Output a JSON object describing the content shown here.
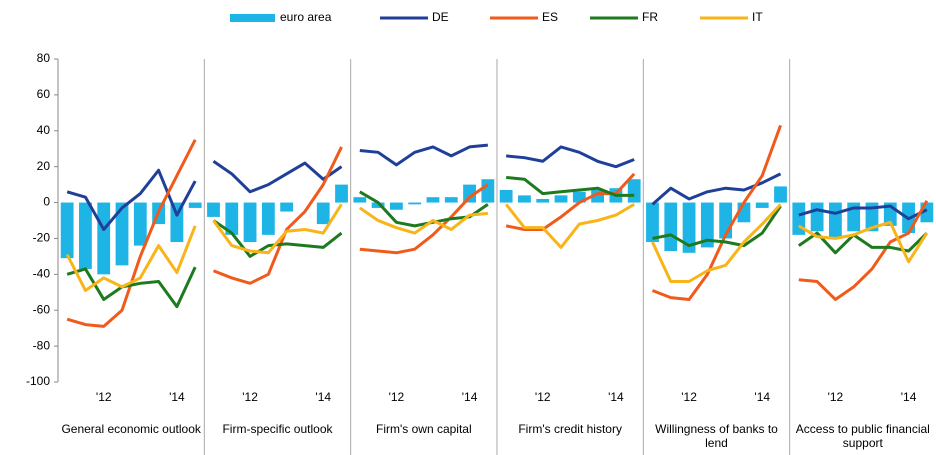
{
  "chart_data": {
    "type": "panel-line",
    "panels": [
      "General economic outlook",
      "Firm-specific outlook",
      "Firm's own capital",
      "Firm's credit history",
      "Willingness of banks to lend",
      "Access to public financial support"
    ],
    "categories": [
      null,
      null,
      "'12",
      null,
      null,
      null,
      "'14",
      null
    ],
    "ylim": [
      -100,
      80
    ],
    "yticks": [
      -100,
      -80,
      -60,
      -40,
      -20,
      0,
      20,
      40,
      60,
      80
    ],
    "series": [
      {
        "name": "euro area",
        "type": "bar",
        "color": "#1fb4e6",
        "values": [
          [
            -31,
            -37,
            -40,
            -35,
            -24,
            -12,
            -22,
            -3
          ],
          [
            -8,
            -18,
            -22,
            -18,
            -5,
            0,
            -12,
            10
          ],
          [
            3,
            -3,
            -4,
            -1,
            3,
            3,
            10,
            13
          ],
          [
            7,
            4,
            2,
            4,
            6,
            7,
            8,
            13
          ],
          [
            -22,
            -27,
            -28,
            -25,
            -20,
            -11,
            -3,
            9
          ],
          [
            -18,
            -16,
            -20,
            -16,
            -16,
            -13,
            -17,
            -11
          ]
        ]
      },
      {
        "name": "DE",
        "type": "line",
        "color": "#1f3f99",
        "values": [
          [
            6,
            3,
            -15,
            -3,
            5,
            18,
            -7,
            12
          ],
          [
            23,
            16,
            6,
            10,
            16,
            22,
            13,
            20
          ],
          [
            29,
            28,
            21,
            28,
            31,
            26,
            31,
            32
          ],
          [
            26,
            25,
            23,
            31,
            28,
            23,
            20,
            24
          ],
          [
            -1,
            8,
            2,
            6,
            8,
            7,
            11,
            16
          ],
          [
            -7,
            -4,
            -6,
            -3,
            -3,
            -2,
            -9,
            -4
          ]
        ]
      },
      {
        "name": "ES",
        "type": "line",
        "color": "#f05a1a",
        "values": [
          [
            -65,
            -68,
            -69,
            -60,
            -30,
            -5,
            15,
            35
          ],
          [
            -38,
            -42,
            -45,
            -40,
            -15,
            -5,
            10,
            31
          ],
          [
            -26,
            -27,
            -28,
            -26,
            -18,
            -8,
            3,
            10
          ],
          [
            -13,
            -15,
            -15,
            -8,
            0,
            5,
            5,
            16
          ],
          [
            -49,
            -53,
            -54,
            -40,
            -18,
            0,
            15,
            43
          ],
          [
            -43,
            -44,
            -54,
            -47,
            -37,
            -22,
            -17,
            1
          ]
        ]
      },
      {
        "name": "FR",
        "type": "line",
        "color": "#1e7a1e",
        "values": [
          [
            -40,
            -37,
            -54,
            -47,
            -45,
            -44,
            -58,
            -36
          ],
          [
            -10,
            -17,
            -30,
            -24,
            -23,
            -24,
            -25,
            -17
          ],
          [
            6,
            0,
            -11,
            -13,
            -11,
            -9,
            -8,
            -1
          ],
          [
            14,
            13,
            5,
            6,
            7,
            8,
            4,
            4
          ],
          [
            -20,
            -18,
            -24,
            -21,
            -22,
            -24,
            -17,
            -2
          ],
          [
            -24,
            -17,
            -28,
            -18,
            -25,
            -25,
            -27,
            -17
          ]
        ]
      },
      {
        "name": "IT",
        "type": "line",
        "color": "#f8b418",
        "values": [
          [
            -29,
            -49,
            -42,
            -47,
            -42,
            -24,
            -39,
            -13
          ],
          [
            -10,
            -24,
            -27,
            -28,
            -16,
            -15,
            -17,
            -1
          ],
          [
            -3,
            -10,
            -14,
            -17,
            -10,
            -15,
            -7,
            -6
          ],
          [
            -1,
            -14,
            -14,
            -25,
            -12,
            -10,
            -7,
            -1
          ],
          [
            -22,
            -44,
            -44,
            -38,
            -35,
            -22,
            -12,
            -1
          ],
          [
            -13,
            -19,
            -20,
            -18,
            -14,
            -11,
            -33,
            -17
          ]
        ]
      }
    ]
  }
}
